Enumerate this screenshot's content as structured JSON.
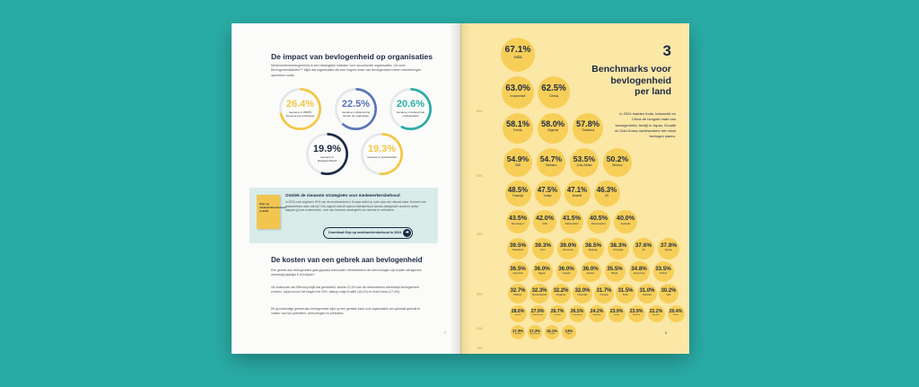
{
  "left": {
    "title": "De impact van bevlogenheid op organisaties",
    "intro": "Medewerkersbevlogenheid is een belangrijke indicator voor succesvolle organisaties. Uit onze Bevlogenheidsindex™ blijkt dat organisaties die een hogere mate van bevlogenheid meten verbeteringen opmerken zoals:",
    "stats": [
      {
        "value": "26.4%",
        "label": "toename in WRPS (revenue per employee)",
        "color": "#f3c746",
        "fraction": 0.72
      },
      {
        "value": "22.5%",
        "label": "toename in afstemming binnen de organisatie",
        "color": "#5b75b8",
        "fraction": 0.62
      },
      {
        "value": "20.6%",
        "label": "toename in behoud van medewerkers",
        "color": "#2aaca6",
        "fraction": 0.58
      },
      {
        "value": "19.9%",
        "label": "toename in klantgerichtheid",
        "color": "#1c2a44",
        "fraction": 0.55
      },
      {
        "value": "19.3%",
        "label": "toename in productiviteit",
        "color": "#f3c746",
        "fraction": 0.52
      }
    ],
    "promo": {
      "book_label": "Grip op medewerkersbehoud in 2024",
      "title": "Ontdek de nieuwste strategieën voor medewerkersbehoud",
      "text": "In 2024, nee ongeveer 34% van de medewerkers in Europa actief op zoek naar een nieuwe baan. Hoeveel van medewerkers doen dat bij? Ons rapport onthult waarom talentbehoud steeds uitdagender wordt en welke stappen jij kunt ondernemen. Leer van bewezen strategieën om retentie te verbeteren.",
      "button": "Download Grip op medewerkersbehoud in 2024"
    },
    "costs_title": "De kosten van een gebrek aan bevlogenheid",
    "paragraphs": [
      "Een gebrek aan bevlogenheid gaat gepaard met kosten. Medewerkers die niet bevlogen zijn kosten werkgevers wereldwijd jaarlijks € 8,8 biljoen*.",
      "Uit onderzoek van Effectory blijkt dat gemiddeld, slechts 37,4% van de medewerkers wereldwijd bevlogenheid ervaren. Japan scoort het laagst met 13%, daarop volgt Kroatië (16,1%) en Zuid-Korea (17,3%).",
      "Dit grootschalige gebrek aan bevlogenheid wijst op een gemiste kans voor organisaties om optimaal gebruik te maken van hun potentieel, werkvreugde en prestaties."
    ],
    "page_number": "7"
  },
  "right": {
    "number": "3",
    "title_lines": [
      "Benchmarks voor",
      "bevlogenheid",
      "per land"
    ],
    "body": "In 2024 hadden India, Indonesië en China de hoogste mate van bevlogenheid, terwijl in Japan, Kroatië en Zuid-Korea medewerkers het minst bevlogen waren.",
    "page_number": "8",
    "scale_labels": [
      "60%",
      "50%",
      "40%",
      "30%",
      "20%",
      "10%"
    ],
    "bubbles": [
      {
        "v": "67.1%",
        "l": "India"
      },
      {
        "v": "63.0%",
        "l": "Indonesië"
      },
      {
        "v": "62.5%",
        "l": "China"
      },
      {
        "v": "58.1%",
        "l": "Kenia"
      },
      {
        "v": "58.0%",
        "l": "Nigeria"
      },
      {
        "v": "57.8%",
        "l": "Thailand"
      },
      {
        "v": "54.9%",
        "l": "VAE"
      },
      {
        "v": "54.7%",
        "l": "Vietnam"
      },
      {
        "v": "53.5%",
        "l": "Zuid-Afrika"
      },
      {
        "v": "50.2%",
        "l": "Mexico"
      },
      {
        "v": "48.5%",
        "l": "Frankrijk"
      },
      {
        "v": "47.5%",
        "l": "Turkije"
      },
      {
        "v": "47.1%",
        "l": "Brazilië"
      },
      {
        "v": "46.3%",
        "l": "VS"
      },
      {
        "v": "43.5%",
        "l": "Noorwegen"
      },
      {
        "v": "42.0%",
        "l": "Chili"
      },
      {
        "v": "41.5%",
        "l": "Zwitserland"
      },
      {
        "v": "40.5%",
        "l": "Denemarken"
      },
      {
        "v": "40.0%",
        "l": "Australië"
      },
      {
        "v": "39.5%",
        "l": "Nederland"
      },
      {
        "v": "39.3%",
        "l": "Peru"
      },
      {
        "v": "39.0%",
        "l": "Roemenië"
      },
      {
        "v": "38.5%",
        "l": "Bulgarije"
      },
      {
        "v": "38.3%",
        "l": "Hongarije"
      },
      {
        "v": "37.6%",
        "l": "VK"
      },
      {
        "v": "37.8%",
        "l": "Spanje"
      },
      {
        "v": "36.5%",
        "l": "Argentinië"
      },
      {
        "v": "36.0%",
        "l": "Egypte"
      },
      {
        "v": "36.0%",
        "l": "Canada"
      },
      {
        "v": "36.0%",
        "l": "Zweden"
      },
      {
        "v": "35.5%",
        "l": "België"
      },
      {
        "v": "34.8%",
        "l": "Hong Kong"
      },
      {
        "v": "33.5%",
        "l": "Finland"
      },
      {
        "v": "32.7%",
        "l": "Filipijnen"
      },
      {
        "v": "32.3%",
        "l": "Nieuw-Zeeland"
      },
      {
        "v": "32.2%",
        "l": "Singapore"
      },
      {
        "v": "32.0%",
        "l": "Oostenrijk"
      },
      {
        "v": "31.7%",
        "l": "Portugal"
      },
      {
        "v": "31.5%",
        "l": "Polen"
      },
      {
        "v": "31.0%",
        "l": "Duitsland"
      },
      {
        "v": "30.2%",
        "l": "Italië"
      },
      {
        "v": "28.6%",
        "l": "Ierland"
      },
      {
        "v": "27.9%",
        "l": "Griekenland"
      },
      {
        "v": "26.7%",
        "l": "Tsjechië"
      },
      {
        "v": "26.5%",
        "l": "Luxemburg"
      },
      {
        "v": "24.2%",
        "l": "Slowakije"
      },
      {
        "v": "23.9%",
        "l": "Taiwan"
      },
      {
        "v": "23.9%",
        "l": "Slovenië"
      },
      {
        "v": "22.2%",
        "l": "Rusland"
      },
      {
        "v": "20.4%",
        "l": "Servië"
      },
      {
        "v": "17.3%",
        "l": "Litouwen"
      },
      {
        "v": "17.3%",
        "l": "Zuid-Korea"
      },
      {
        "v": "16.1%",
        "l": "Kroatië"
      },
      {
        "v": "13%",
        "l": "Japan"
      }
    ]
  }
}
